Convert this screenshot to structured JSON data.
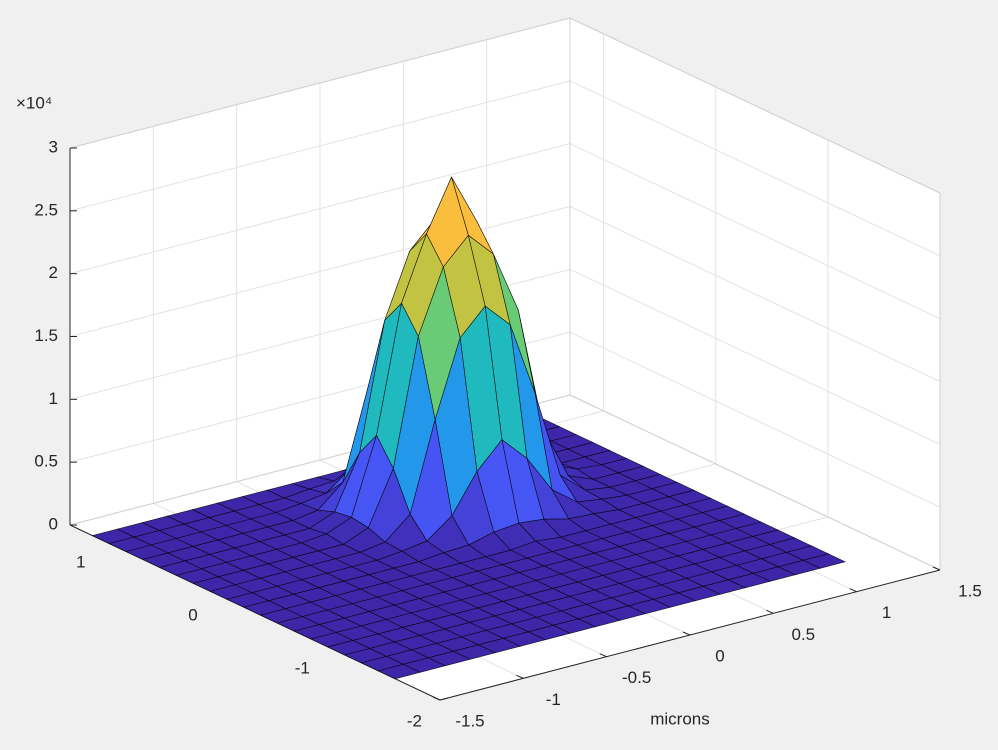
{
  "chart_data": {
    "type": "surface",
    "xlabel": "microns",
    "z_multiplier": "×10⁴",
    "xlim": [
      -1.5,
      1.5
    ],
    "ylim": [
      -2,
      1.3
    ],
    "zlim": [
      0,
      3
    ],
    "xticks": [
      -1.5,
      -1,
      -0.5,
      0,
      0.5,
      1,
      1.5
    ],
    "yticks": [
      -2,
      -1,
      0,
      1
    ],
    "zticks": [
      0,
      0.5,
      1,
      1.5,
      2,
      2.5,
      3
    ],
    "grid": true,
    "colormap": "parula",
    "edge_color": "#000000",
    "x": [
      -1.5,
      -1.35,
      -1.2,
      -1.05,
      -0.9,
      -0.75,
      -0.6,
      -0.45,
      -0.3,
      -0.15,
      0,
      0.15,
      0.3,
      0.45,
      0.6,
      0.75,
      0.9,
      1.05,
      1.2
    ],
    "y": [
      -1.6,
      -1.45,
      -1.3,
      -1.15,
      -1,
      -0.85,
      -0.7,
      -0.55,
      -0.4,
      -0.25,
      -0.1,
      0.05,
      0.2,
      0.35,
      0.5,
      0.65,
      0.8,
      0.95,
      1.1
    ],
    "z": [
      [
        0,
        0,
        0,
        0,
        0,
        0,
        0,
        0,
        0,
        0,
        0,
        0,
        0,
        0,
        0,
        0,
        0,
        0,
        0
      ],
      [
        0,
        0,
        0,
        0,
        0,
        0,
        0,
        0,
        0,
        0,
        0,
        0,
        0,
        0,
        0,
        0,
        0,
        0,
        0
      ],
      [
        0,
        0,
        0,
        0,
        0,
        0,
        0,
        0,
        0,
        0,
        0,
        0,
        0,
        0,
        0,
        0,
        0,
        0,
        0
      ],
      [
        0,
        0,
        0,
        0,
        0,
        0,
        0,
        0,
        0,
        0,
        0,
        0,
        0,
        0,
        0,
        0,
        0,
        0,
        0
      ],
      [
        0,
        0,
        0,
        0,
        0,
        0,
        0,
        0,
        0,
        0,
        0,
        0,
        0,
        0,
        0,
        0,
        0,
        0,
        0
      ],
      [
        0,
        0,
        0,
        0,
        0,
        0,
        0,
        0,
        0,
        0,
        0,
        0,
        0,
        0,
        0,
        0,
        0,
        0,
        0
      ],
      [
        0,
        0,
        0,
        0,
        0,
        0,
        0,
        0,
        0,
        0,
        0,
        0,
        0,
        0,
        0,
        0,
        0,
        0,
        0
      ],
      [
        0,
        0,
        0,
        0,
        0,
        0,
        0,
        0,
        0,
        0,
        0,
        0,
        0,
        0,
        0,
        0,
        0,
        0,
        0
      ],
      [
        0,
        0,
        0,
        0,
        0,
        0,
        0,
        0,
        0,
        0,
        0,
        0.02,
        0,
        0,
        0,
        0,
        0,
        0,
        0
      ],
      [
        0,
        0,
        0,
        0,
        0,
        0,
        0,
        0,
        0.02,
        0.03,
        0.08,
        0.1,
        0.08,
        0.03,
        0.02,
        0,
        0,
        0,
        0
      ],
      [
        0,
        0,
        0,
        0,
        0,
        0,
        0,
        0.02,
        0.05,
        0.2,
        0.5,
        0.7,
        0.5,
        0.2,
        0.05,
        0.02,
        0,
        0,
        0
      ],
      [
        0,
        0,
        0,
        0,
        0,
        0,
        0,
        0.03,
        0.2,
        0.9,
        1.5,
        1.7,
        1.5,
        0.9,
        0.2,
        0.03,
        0,
        0,
        0
      ],
      [
        0,
        0,
        0,
        0,
        0,
        0,
        0,
        0.08,
        0.5,
        1.5,
        2,
        2.2,
        2,
        1.5,
        0.5,
        0.08,
        0,
        0,
        0
      ],
      [
        0,
        0,
        0,
        0,
        0,
        0,
        0.02,
        0.1,
        0.7,
        1.7,
        2.2,
        2.6,
        2.2,
        1.7,
        0.7,
        0.1,
        0.02,
        0,
        0
      ],
      [
        0,
        0,
        0,
        0,
        0,
        0,
        0,
        0.08,
        0.5,
        1.5,
        2,
        2.2,
        2,
        1.5,
        0.5,
        0.08,
        0,
        0,
        0
      ],
      [
        0,
        0,
        0,
        0,
        0,
        0,
        0,
        0.03,
        0.2,
        0.9,
        1.5,
        1.7,
        1.5,
        0.9,
        0.2,
        0.03,
        0,
        0,
        0
      ],
      [
        0,
        0,
        0,
        0,
        0,
        0,
        0,
        0.02,
        0.05,
        0.2,
        0.5,
        0.7,
        0.5,
        0.2,
        0.05,
        0.02,
        0,
        0,
        0
      ],
      [
        0,
        0,
        0,
        0,
        0,
        0,
        0,
        0,
        0.02,
        0.03,
        0.08,
        0.1,
        0.08,
        0.03,
        0.02,
        0,
        0,
        0,
        0
      ],
      [
        0,
        0,
        0,
        0,
        0,
        0,
        0,
        0,
        0,
        0,
        0,
        0.02,
        0,
        0,
        0,
        0,
        0,
        0,
        0
      ]
    ]
  }
}
